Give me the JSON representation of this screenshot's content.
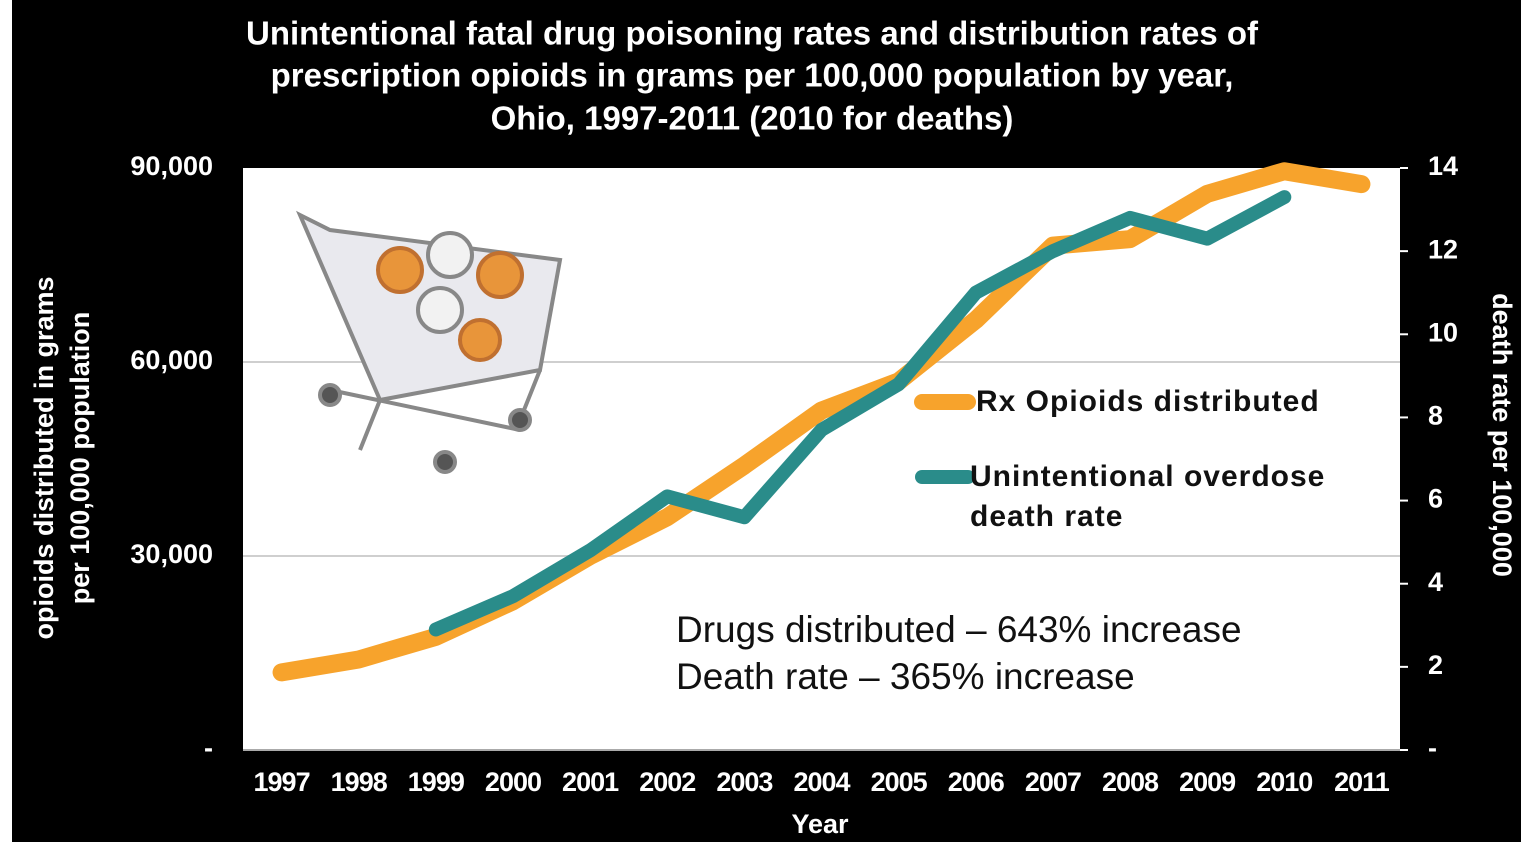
{
  "chart_data": {
    "type": "line",
    "title": [
      "Unintentional fatal drug poisoning rates and distribution rates of",
      "prescription opioids in grams per 100,000 population by year,",
      "Ohio, 1997-2011  (2010 for deaths)"
    ],
    "xlabel": "Year",
    "ylabel": [
      "opioids distributed in grams",
      "per 100,000 population"
    ],
    "y2label": "death rate per 100,000",
    "categories": [
      "1997",
      "1998",
      "1999",
      "2000",
      "2001",
      "2002",
      "2003",
      "2004",
      "2005",
      "2006",
      "2007",
      "2008",
      "2009",
      "2010",
      "2011"
    ],
    "series": [
      {
        "name": "Rx Opioids distributed",
        "color": "#f7a32c",
        "values": [
          12000,
          14000,
          17500,
          23000,
          30000,
          36000,
          44000,
          52500,
          57000,
          66500,
          78000,
          79000,
          86000,
          89500,
          87500
        ]
      },
      {
        "name": "Unintentional overdose death rate",
        "color": "#2a8c8a",
        "axis": "y2",
        "values": [
          null,
          null,
          2.9,
          3.7,
          4.8,
          6.1,
          5.6,
          7.7,
          8.8,
          11.0,
          12.0,
          12.8,
          12.3,
          13.3,
          null
        ]
      }
    ],
    "ylim": [
      0,
      90000
    ],
    "yticks": [
      {
        "value": 0,
        "label": "-"
      },
      {
        "value": 30000,
        "label": "30,000"
      },
      {
        "value": 60000,
        "label": "60,000"
      },
      {
        "value": 90000,
        "label": "90,000"
      }
    ],
    "y2lim": [
      0,
      14
    ],
    "y2ticks": [
      {
        "value": 0,
        "label": "-"
      },
      2,
      4,
      6,
      8,
      10,
      12,
      14
    ],
    "grid": true,
    "annotations": [
      "Drugs distributed – 643% increase",
      "Death rate – 365% increase"
    ]
  }
}
